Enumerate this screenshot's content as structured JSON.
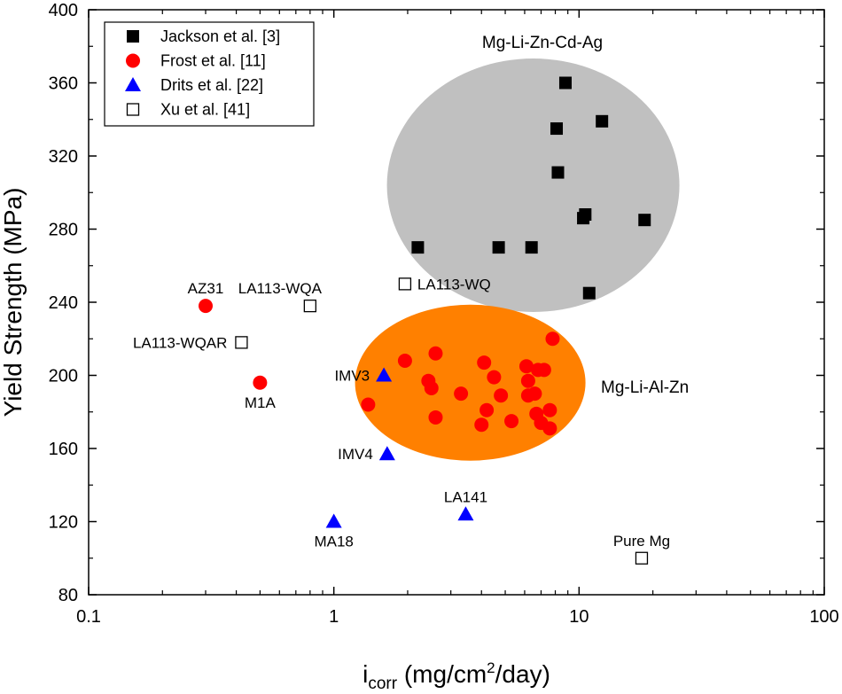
{
  "chart_data": {
    "type": "scatter",
    "x_scale": "log",
    "xlim": [
      0.1,
      100
    ],
    "ylim": [
      80,
      400
    ],
    "x_ticks": [
      0.1,
      1,
      10,
      100
    ],
    "x_tick_labels": [
      "0.1",
      "1",
      "10",
      "100"
    ],
    "y_ticks": [
      80,
      120,
      160,
      200,
      240,
      280,
      320,
      360,
      400
    ],
    "y_tick_labels": [
      "80",
      "120",
      "160",
      "200",
      "240",
      "280",
      "320",
      "360",
      "400"
    ],
    "ylabel": "Yield Strength (MPa)",
    "xlabel_main": "i",
    "xlabel_sub": "corr",
    "xlabel_unit_a": " (mg/cm",
    "xlabel_sup": "2",
    "xlabel_unit_b": "/day)",
    "legend_position": "top-left",
    "regions": [
      {
        "name": "Mg-Li-Zn-Cd-Ag",
        "x_center": 6.5,
        "y_center": 304,
        "color": "#c0c0c0"
      },
      {
        "name": "Mg-Li-Al-Zn",
        "x_center": 3.6,
        "y_center": 196,
        "color": "#ff8000"
      }
    ],
    "series": [
      {
        "name": "Jackson et al. [3]",
        "marker": "square-filled",
        "color": "#000000",
        "points": [
          [
            8.8,
            360
          ],
          [
            12.4,
            339
          ],
          [
            8.1,
            335
          ],
          [
            8.2,
            311
          ],
          [
            10.6,
            288
          ],
          [
            10.4,
            286
          ],
          [
            18.5,
            285
          ],
          [
            2.2,
            270
          ],
          [
            4.7,
            270
          ],
          [
            6.4,
            270
          ],
          [
            11.0,
            245
          ]
        ]
      },
      {
        "name": "Frost et al. [11]",
        "marker": "circle",
        "color": "#ff0000",
        "points": [
          [
            0.3,
            238
          ],
          [
            0.5,
            196
          ],
          [
            1.38,
            184
          ],
          [
            1.95,
            208
          ],
          [
            2.43,
            197
          ],
          [
            2.5,
            193
          ],
          [
            2.6,
            212
          ],
          [
            2.6,
            177
          ],
          [
            3.3,
            190
          ],
          [
            4.0,
            173
          ],
          [
            4.1,
            207
          ],
          [
            4.2,
            181
          ],
          [
            4.5,
            199
          ],
          [
            4.8,
            189
          ],
          [
            5.3,
            175
          ],
          [
            6.1,
            205
          ],
          [
            6.2,
            197
          ],
          [
            6.2,
            189
          ],
          [
            6.6,
            190
          ],
          [
            6.7,
            179
          ],
          [
            6.8,
            203
          ],
          [
            7.0,
            174
          ],
          [
            7.2,
            203
          ],
          [
            7.6,
            181
          ],
          [
            7.6,
            171
          ],
          [
            7.8,
            220
          ]
        ]
      },
      {
        "name": "Drits et al. [22]",
        "marker": "triangle",
        "color": "#0000ff",
        "points": [
          [
            1.6,
            200
          ],
          [
            1.65,
            157
          ],
          [
            1.0,
            120
          ],
          [
            3.45,
            124
          ]
        ]
      },
      {
        "name": "Xu et al. [41]",
        "marker": "square-open",
        "color": "#000000",
        "points": [
          [
            0.8,
            238
          ],
          [
            0.42,
            218
          ],
          [
            1.95,
            250
          ],
          [
            18.0,
            100
          ]
        ]
      }
    ],
    "annotations": [
      {
        "text": "AZ31",
        "x": 0.3,
        "y": 238,
        "anchor": "above"
      },
      {
        "text": "M1A",
        "x": 0.5,
        "y": 196,
        "anchor": "below"
      },
      {
        "text": "LA113-WQA",
        "x": 0.8,
        "y": 238,
        "anchor": "above-left"
      },
      {
        "text": "LA113-WQAR",
        "x": 0.42,
        "y": 218,
        "anchor": "left"
      },
      {
        "text": "LA113-WQ",
        "x": 1.95,
        "y": 250,
        "anchor": "right"
      },
      {
        "text": "IMV3",
        "x": 1.6,
        "y": 200,
        "anchor": "left"
      },
      {
        "text": "IMV4",
        "x": 1.65,
        "y": 157,
        "anchor": "left"
      },
      {
        "text": "MA18",
        "x": 1.0,
        "y": 120,
        "anchor": "below"
      },
      {
        "text": "LA141",
        "x": 3.45,
        "y": 124,
        "anchor": "above"
      },
      {
        "text": "Pure Mg",
        "x": 18.0,
        "y": 100,
        "anchor": "above"
      }
    ]
  }
}
